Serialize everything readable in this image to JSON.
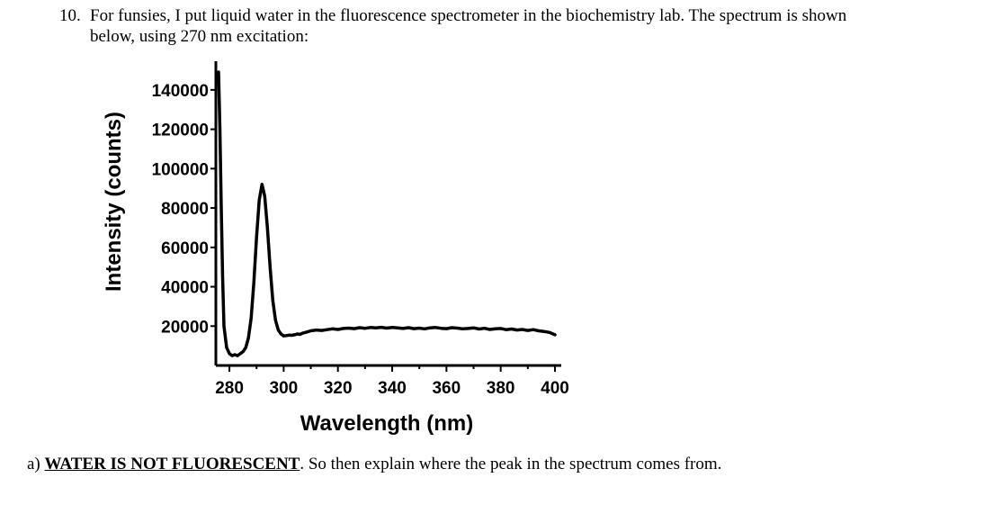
{
  "question": {
    "number": "10.",
    "line1": "For funsies, I put liquid water in the fluorescence spectrometer in the biochemistry lab. The spectrum is shown",
    "line2": "below, using 270 nm excitation:"
  },
  "chart_data": {
    "type": "line",
    "xlabel": "Wavelength (nm)",
    "ylabel": "Intensity (counts)",
    "xlim": [
      276,
      401
    ],
    "ylim": [
      0,
      150000
    ],
    "xticks": [
      280,
      300,
      320,
      340,
      360,
      380,
      400
    ],
    "yticks": [
      20000,
      40000,
      60000,
      80000,
      100000,
      120000,
      140000
    ],
    "xtick_labels": [
      "280",
      "300",
      "320",
      "340",
      "360",
      "380",
      "400"
    ],
    "ytick_labels": [
      "20000",
      "40000",
      "60000",
      "80000",
      "100000",
      "120000",
      "140000"
    ],
    "grid": false,
    "line_color": "#000000",
    "series": [
      {
        "x": [
          276,
          276.5,
          277,
          277.5,
          278,
          279,
          280,
          281,
          282,
          283,
          284,
          285,
          286,
          287,
          288,
          289,
          290,
          291,
          292,
          293,
          294,
          295,
          296,
          297,
          298,
          299,
          300,
          301,
          302,
          303,
          304,
          305,
          306,
          307,
          308,
          309,
          310,
          312,
          314,
          316,
          318,
          320,
          322,
          324,
          326,
          328,
          330,
          332,
          334,
          336,
          338,
          340,
          342,
          344,
          346,
          348,
          350,
          352,
          354,
          356,
          358,
          360,
          362,
          364,
          366,
          368,
          370,
          372,
          374,
          376,
          378,
          380,
          382,
          384,
          386,
          388,
          390,
          392,
          394,
          396,
          398,
          400
        ],
        "y": [
          150000,
          120000,
          80000,
          45000,
          20000,
          9000,
          6000,
          5000,
          5500,
          5000,
          6000,
          7000,
          9000,
          14000,
          24000,
          42000,
          65000,
          84000,
          92000,
          86000,
          70000,
          50000,
          33000,
          23000,
          18000,
          16000,
          15000,
          15200,
          15400,
          15300,
          15600,
          16000,
          15800,
          16400,
          16800,
          17200,
          17600,
          18000,
          17800,
          18200,
          18600,
          18300,
          18800,
          19000,
          18700,
          19200,
          18900,
          19300,
          19100,
          19400,
          19000,
          19300,
          19100,
          18800,
          19200,
          18700,
          19000,
          18600,
          19100,
          19300,
          18900,
          18700,
          19200,
          19000,
          18600,
          18800,
          19100,
          18500,
          18900,
          18300,
          18600,
          18800,
          18200,
          18500,
          18000,
          18300,
          17800,
          18200,
          17600,
          17300,
          16800,
          15600
        ]
      }
    ]
  },
  "part_a": {
    "prefix": "a) ",
    "emphasis": "WATER IS NOT FLUORESCENT",
    "rest": ". So then explain where the peak in the spectrum comes from."
  }
}
